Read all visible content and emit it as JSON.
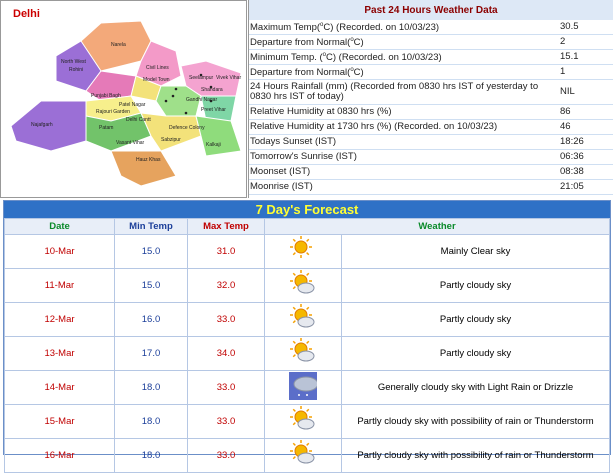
{
  "map": {
    "title": "Delhi",
    "labels": [
      "Narela",
      "Rohini",
      "North West",
      "Model Town",
      "Seelampur",
      "Shahdara",
      "Punjabi Bagh",
      "Patel Nagar",
      "Civil Lines",
      "Rajouri Garden",
      "Delhi Cantt",
      "Gandhi Nagar",
      "Preet Vihar",
      "Vivek Vihar",
      "Najafgarh",
      "Vasant Vihar",
      "Patam",
      "Defence Colony",
      "Sabzipur",
      "Kalkaji",
      "Hauz Khas"
    ]
  },
  "past": {
    "title": "Past 24 Hours Weather Data",
    "rows": [
      {
        "label": [
          "Maximum Temp(",
          "o",
          "C) (Recorded. on 10/03/23)"
        ],
        "value": 30.5
      },
      {
        "label": [
          "Departure from Normal(",
          "o",
          "C)"
        ],
        "value": 2
      },
      {
        "label": [
          "Minimum Temp. (",
          "o",
          "C) (Recorded. on 10/03/23)"
        ],
        "value": 15.1
      },
      {
        "label": [
          "Departure from Normal(",
          "o",
          "C)"
        ],
        "value": 1
      },
      {
        "label": "24 Hours Rainfall (mm) (Recorded from 0830 hrs IST of yesterday to 0830 hrs IST of today)",
        "value": "NIL"
      },
      {
        "label": "Relative Humidity at 0830 hrs (%)",
        "value": 86
      },
      {
        "label": "Relative Humidity at 1730 hrs (%) (Recorded. on 10/03/23)",
        "value": 46
      },
      {
        "label": "Todays Sunset (IST)",
        "value": "18:26"
      },
      {
        "label": "Tomorrow's Sunrise (IST)",
        "value": "06:36"
      },
      {
        "label": "Moonset (IST)",
        "value": "08:38"
      },
      {
        "label": "Moonrise (IST)",
        "value": "21:05"
      }
    ]
  },
  "forecast": {
    "title": "7 Day's Forecast",
    "headers": [
      "Date",
      "Min Temp",
      "Max Temp",
      "Weather"
    ],
    "rows": [
      [
        "10-Mar",
        "15.0",
        "31.0",
        "Mainly Clear sky"
      ],
      [
        "11-Mar",
        "15.0",
        "32.0",
        "Partly cloudy sky"
      ],
      [
        "12-Mar",
        "16.0",
        "33.0",
        "Partly cloudy sky"
      ],
      [
        "13-Mar",
        "17.0",
        "34.0",
        "Partly cloudy sky"
      ],
      [
        "14-Mar",
        "18.0",
        "33.0",
        "Generally cloudy sky with Light Rain or Drizzle"
      ],
      [
        "15-Mar",
        "18.0",
        "33.0",
        "Partly cloudy sky with possibility of rain or Thunderstorm"
      ],
      [
        "16-Mar",
        "18.0",
        "33.0",
        "Partly cloudy sky with possibility of rain or Thunderstorm"
      ]
    ]
  }
}
